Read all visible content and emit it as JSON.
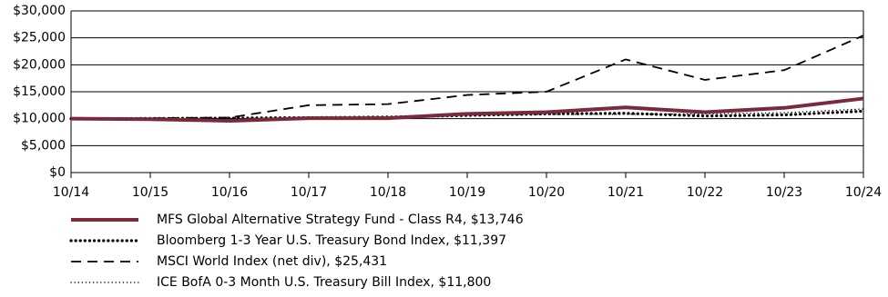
{
  "chart_data": {
    "type": "line",
    "categories": [
      "10/14",
      "10/15",
      "10/16",
      "10/17",
      "10/18",
      "10/19",
      "10/20",
      "10/21",
      "10/22",
      "10/23",
      "10/24"
    ],
    "ylim": [
      0,
      30000
    ],
    "yticks": [
      {
        "value": 0,
        "label": "$0"
      },
      {
        "value": 5000,
        "label": "$5,000"
      },
      {
        "value": 10000,
        "label": "$10,000"
      },
      {
        "value": 15000,
        "label": "$15,000"
      },
      {
        "value": 20000,
        "label": "$20,000"
      },
      {
        "value": 25000,
        "label": "$25,000"
      },
      {
        "value": 30000,
        "label": "$30,000"
      }
    ],
    "grid": true,
    "legend": "bottom",
    "series": [
      {
        "name": "MFS Global Alternative Strategy Fund - Class R4, $13,746",
        "color": "#7b2a3c",
        "style": "solid",
        "values": [
          10000,
          9900,
          9600,
          10100,
          10100,
          10900,
          11200,
          12100,
          11200,
          12000,
          13746
        ]
      },
      {
        "name": "Bloomberg 1-3 Year U.S. Treasury Bond Index, $11,397",
        "color": "#000000",
        "style": "dotted",
        "values": [
          10000,
          10050,
          10100,
          10200,
          10300,
          10600,
          10900,
          11000,
          10500,
          10700,
          11397
        ]
      },
      {
        "name": "MSCI World Index (net div), $25,431",
        "color": "#000000",
        "style": "dashed",
        "values": [
          10000,
          10100,
          10200,
          12500,
          12700,
          14400,
          15000,
          21000,
          17200,
          19000,
          25431
        ]
      },
      {
        "name": "ICE BofA 0-3 Month U.S. Treasury Bill Index, $11,800",
        "color": "#000000",
        "style": "fine-dotted",
        "values": [
          10000,
          10000,
          10050,
          10100,
          10300,
          10700,
          10800,
          10800,
          10900,
          11100,
          11800
        ]
      }
    ]
  }
}
